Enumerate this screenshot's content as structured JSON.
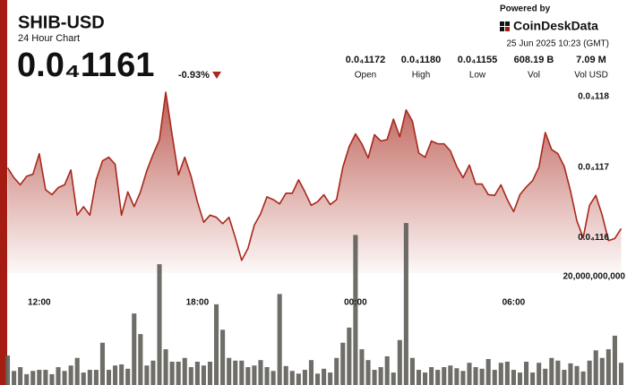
{
  "header": {
    "title": "SHIB-USD",
    "subtitle": "24 Hour Chart",
    "price": "0.0₄1161",
    "change": "-0.93%",
    "powered_by": "Powered by",
    "brand": "CoinDeskData",
    "timestamp": "25 Jun 2025 10:23 (GMT)",
    "stats": [
      {
        "value": "0.0₄1172",
        "label": "Open"
      },
      {
        "value": "0.0₄1180",
        "label": "High"
      },
      {
        "value": "0.0₄1155",
        "label": "Low"
      },
      {
        "value": "608.19 B",
        "label": "Vol"
      },
      {
        "value": "7.09 M",
        "label": "Vol USD"
      }
    ]
  },
  "chart_data": {
    "type": "line",
    "categories": [
      null,
      null,
      null,
      null,
      null,
      "12:00",
      null,
      null,
      null,
      null,
      null,
      null,
      null,
      null,
      null,
      null,
      null,
      null,
      null,
      null,
      null,
      null,
      null,
      null,
      null,
      null,
      null,
      null,
      null,
      null,
      "18:00",
      null,
      null,
      null,
      null,
      null,
      null,
      null,
      null,
      null,
      null,
      null,
      null,
      null,
      null,
      null,
      null,
      null,
      null,
      null,
      null,
      null,
      null,
      null,
      null,
      "00:00",
      null,
      null,
      null,
      null,
      null,
      null,
      null,
      null,
      null,
      null,
      null,
      null,
      null,
      null,
      null,
      null,
      null,
      null,
      null,
      null,
      null,
      null,
      null,
      null,
      "06:00",
      null,
      null,
      null,
      null,
      null,
      null,
      null,
      null,
      null,
      null,
      null,
      null,
      null,
      null,
      null,
      null,
      null
    ],
    "series": [
      {
        "color": "#a8281c",
        "values": [
          1.1699e-05,
          1.1685e-05,
          1.1675e-05,
          1.1687e-05,
          1.169e-05,
          1.1719e-05,
          1.1668e-05,
          1.1661e-05,
          1.1671e-05,
          1.1675e-05,
          1.1696e-05,
          1.1632e-05,
          1.1644e-05,
          1.1632e-05,
          1.1682e-05,
          1.1709e-05,
          1.1714e-05,
          1.1704e-05,
          1.1632e-05,
          1.1665e-05,
          1.1644e-05,
          1.1665e-05,
          1.1695e-05,
          1.1718e-05,
          1.1739e-05,
          1.1806e-05,
          1.1746e-05,
          1.1689e-05,
          1.1714e-05,
          1.1687e-05,
          1.1651e-05,
          1.1622e-05,
          1.1632e-05,
          1.1629e-05,
          1.162e-05,
          1.1629e-05,
          1.16e-05,
          1.1568e-05,
          1.1585e-05,
          1.1618e-05,
          1.1634e-05,
          1.1658e-05,
          1.1654e-05,
          1.1648e-05,
          1.1663e-05,
          1.1663e-05,
          1.1682e-05,
          1.1665e-05,
          1.1646e-05,
          1.1651e-05,
          1.1661e-05,
          1.1647e-05,
          1.1654e-05,
          1.17e-05,
          1.1729e-05,
          1.1747e-05,
          1.1733e-05,
          1.1713e-05,
          1.1746e-05,
          1.1737e-05,
          1.1739e-05,
          1.1768e-05,
          1.1743e-05,
          1.1781e-05,
          1.1765e-05,
          1.172e-05,
          1.1714e-05,
          1.1737e-05,
          1.1733e-05,
          1.1733e-05,
          1.1723e-05,
          1.1701e-05,
          1.1685e-05,
          1.1703e-05,
          1.1676e-05,
          1.1676e-05,
          1.1661e-05,
          1.166e-05,
          1.1675e-05,
          1.1654e-05,
          1.1637e-05,
          1.1661e-05,
          1.1672e-05,
          1.1681e-05,
          1.17e-05,
          1.1749e-05,
          1.1725e-05,
          1.1719e-05,
          1.1701e-05,
          1.1666e-05,
          1.1624e-05,
          1.16e-05,
          1.1646e-05,
          1.166e-05,
          1.1632e-05,
          1.1596e-05,
          1.1599e-05,
          1.1613e-05
        ]
      },
      {
        "type": "bar",
        "axis": "y2",
        "color": "#5e5d58",
        "values": [
          5450000000.0,
          2600000000.0,
          3300000000.0,
          2000000000.0,
          2600000000.0,
          2800000000.0,
          2800000000.0,
          2000000000.0,
          3300000000.0,
          2600000000.0,
          3600000000.0,
          5000000000.0,
          2300000000.0,
          2800000000.0,
          2800000000.0,
          7800000000.0,
          2800000000.0,
          3600000000.0,
          3800000000.0,
          3000000000.0,
          13200000000.0,
          9400000000.0,
          3600000000.0,
          4500000000.0,
          22300000000.0,
          6600000000.0,
          4300000000.0,
          4300000000.0,
          5000000000.0,
          3300000000.0,
          4300000000.0,
          3600000000.0,
          4300000000.0,
          14900000000.0,
          10200000000.0,
          5000000000.0,
          4500000000.0,
          4500000000.0,
          3300000000.0,
          3600000000.0,
          4600000000.0,
          3300000000.0,
          2600000000.0,
          16800000000.0,
          3500000000.0,
          2600000000.0,
          2100000000.0,
          2800000000.0,
          4600000000.0,
          2100000000.0,
          3000000000.0,
          2300000000.0,
          5000000000.0,
          7800000000.0,
          10600000000.0,
          27700000000.0,
          6600000000.0,
          4600000000.0,
          2800000000.0,
          3300000000.0,
          5300000000.0,
          2300000000.0,
          8300000000.0,
          29900000000.0,
          5000000000.0,
          2800000000.0,
          2300000000.0,
          3300000000.0,
          2800000000.0,
          3300000000.0,
          3600000000.0,
          3100000000.0,
          2600000000.0,
          4100000000.0,
          3300000000.0,
          3000000000.0,
          4800000000.0,
          2800000000.0,
          4100000000.0,
          4300000000.0,
          2800000000.0,
          2300000000.0,
          4300000000.0,
          2300000000.0,
          4100000000.0,
          3000000000.0,
          5000000000.0,
          4500000000.0,
          2800000000.0,
          4000000000.0,
          3500000000.0,
          2500000000.0,
          4500000000.0,
          6400000000.0,
          5000000000.0,
          6600000000.0,
          9100000000.0,
          4100000000.0
        ]
      }
    ],
    "ylim": [
      1.155e-05,
      1.182e-05
    ],
    "yticks": [
      {
        "value": 1.18e-05,
        "label": "0.0₄118"
      },
      {
        "value": 1.17e-05,
        "label": "0.0₄117"
      },
      {
        "value": 1.16e-05,
        "label": "0.0₄116"
      }
    ],
    "y2lim": [
      0,
      30000000000.0
    ],
    "y2ticks": [
      {
        "value": 20000000000.0,
        "label": "20,000,000,000"
      }
    ],
    "grid": false
  }
}
